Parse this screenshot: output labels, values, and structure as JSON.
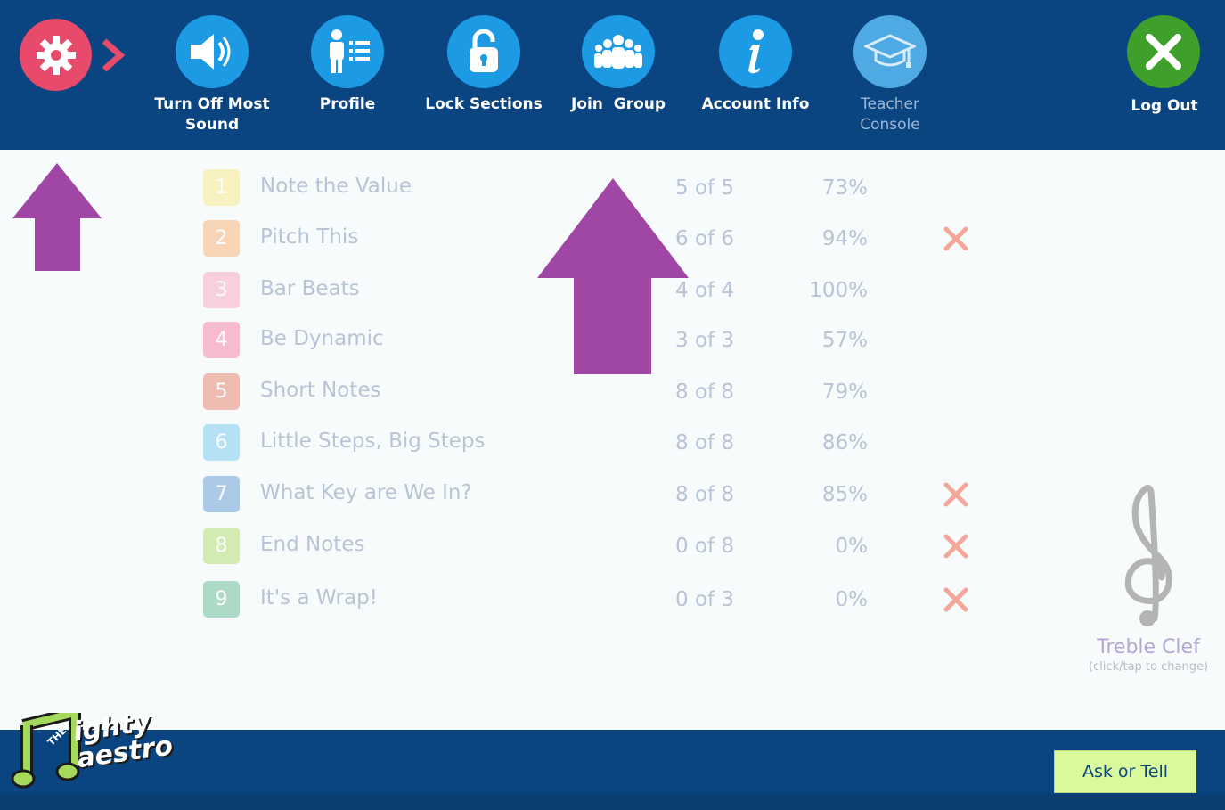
{
  "toolbar": {
    "items": [
      {
        "label_line1": "Turn Off Most",
        "label_line2": "Sound",
        "icon": "speaker-icon"
      },
      {
        "label": "Profile",
        "icon": "profile-icon"
      },
      {
        "label": "Lock Sections",
        "icon": "unlock-icon"
      },
      {
        "label": "Join  Group",
        "icon": "group-icon"
      },
      {
        "label": "Account Info",
        "icon": "info-icon"
      },
      {
        "label_line1": "Teacher",
        "label_line2": "Console",
        "icon": "graduation-cap-icon"
      }
    ],
    "logout_label": "Log Out",
    "settings_icon": "gear-icon"
  },
  "sections": [
    {
      "num": "1",
      "title": "Note the Value",
      "count": "5 of 5",
      "pct": "73%",
      "failed": false,
      "color": "#fbe97a"
    },
    {
      "num": "2",
      "title": "Pitch This",
      "count": "6 of 6",
      "pct": "94%",
      "failed": true,
      "color": "#fca866"
    },
    {
      "num": "3",
      "title": "Bar Beats",
      "count": "4 of 4",
      "pct": "100%",
      "failed": false,
      "color": "#f99ab9"
    },
    {
      "num": "4",
      "title": "Be Dynamic",
      "count": "3 of 3",
      "pct": "57%",
      "failed": false,
      "color": "#f56e98"
    },
    {
      "num": "5",
      "title": "Short Notes",
      "count": "8 of 8",
      "pct": "79%",
      "failed": false,
      "color": "#e6705a"
    },
    {
      "num": "6",
      "title": "Little Steps, Big Steps",
      "count": "8 of 8",
      "pct": "86%",
      "failed": false,
      "color": "#67c3f0"
    },
    {
      "num": "7",
      "title": "What Key are We In?",
      "count": "8 of 8",
      "pct": "85%",
      "failed": true,
      "color": "#4f8fcf"
    },
    {
      "num": "8",
      "title": "End Notes",
      "count": "0 of 8",
      "pct": "0%",
      "failed": true,
      "color": "#a5d95c"
    },
    {
      "num": "9",
      "title": "It's a Wrap!",
      "count": "0 of 3",
      "pct": "0%",
      "failed": true,
      "color": "#55b18a"
    }
  ],
  "clef": {
    "name": "Treble Clef",
    "hint": "(click/tap to change)"
  },
  "ask_label": "Ask or Tell",
  "logo": {
    "the": "THE",
    "line1": "ighty",
    "line2": "aestro"
  },
  "colors": {
    "bar": "#0b4581",
    "accent": "#1c9ae3",
    "arrow": "#a047a5",
    "fail": "#f2a79a"
  }
}
